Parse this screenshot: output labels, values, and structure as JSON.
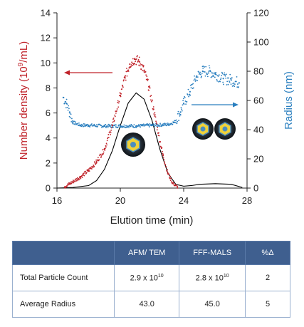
{
  "chart_data": {
    "type": "scatter",
    "xlabel": "Elution time (min)",
    "ylabel_left": "Number density (10",
    "ylabel_left_sup": "9",
    "ylabel_left_tail": "/mL)",
    "ylabel_right": "Radius (nm)",
    "x_ticks": [
      "16",
      "20",
      "24",
      "28"
    ],
    "y_left_ticks": [
      "0",
      "2",
      "4",
      "6",
      "8",
      "10",
      "12",
      "14"
    ],
    "y_right_ticks": [
      "0",
      "20",
      "40",
      "60",
      "80",
      "100",
      "120"
    ],
    "xlim": [
      16,
      28
    ],
    "ylim_left": [
      0,
      14
    ],
    "ylim_right": [
      0,
      120
    ],
    "colors": {
      "density": "#c0232a",
      "radius": "#2a7fbf",
      "fit": "#000000"
    },
    "series": [
      {
        "axis": "left",
        "style": "dots",
        "x": [
          16.5,
          17.0,
          17.5,
          18.0,
          18.5,
          19.0,
          19.5,
          20.0,
          20.3,
          20.6,
          20.9,
          21.2,
          21.5,
          21.8,
          22.1,
          22.4,
          22.7,
          23.0,
          23.3,
          23.6
        ],
        "y": [
          0.1,
          0.5,
          0.9,
          1.4,
          2.1,
          3.1,
          5.0,
          7.4,
          8.8,
          9.9,
          10.3,
          10.1,
          9.4,
          8.1,
          6.3,
          4.4,
          2.6,
          1.2,
          0.4,
          0.1
        ]
      },
      {
        "axis": "left",
        "style": "line",
        "x": [
          16.0,
          17.0,
          18.0,
          18.5,
          19.0,
          19.5,
          20.0,
          20.5,
          21.0,
          21.5,
          22.0,
          22.5,
          23.0,
          23.5,
          24.0,
          24.5,
          25.0,
          26.0,
          27.0,
          27.7
        ],
        "y": [
          0.0,
          0.05,
          0.2,
          0.6,
          1.5,
          3.0,
          5.0,
          6.8,
          7.6,
          7.1,
          5.4,
          3.1,
          1.2,
          0.3,
          0.15,
          0.2,
          0.3,
          0.35,
          0.3,
          0.05
        ]
      },
      {
        "axis": "right",
        "style": "dots",
        "x": [
          16.4,
          16.6,
          16.8,
          17.0,
          17.5,
          18.0,
          19.0,
          20.0,
          21.0,
          22.0,
          23.0,
          23.4,
          23.8,
          24.0,
          24.4,
          24.8,
          25.2,
          25.6,
          26.0,
          26.5,
          27.0,
          27.5
        ],
        "y": [
          62,
          58,
          52,
          45,
          43,
          43,
          42.5,
          42.5,
          42.5,
          43,
          43.5,
          45,
          52,
          58,
          66,
          76,
          80,
          80,
          78,
          75,
          74,
          72
        ]
      }
    ]
  },
  "table": {
    "headers": [
      "",
      "AFM/ TEM",
      "FFF-MALS",
      "%Δ"
    ],
    "rows": [
      {
        "label": "Total Particle Count",
        "afm_base": "2.9 x 10",
        "afm_exp": "10",
        "fff_base": "2.8 x 10",
        "fff_exp": "10",
        "pct": "2"
      },
      {
        "label": "Average Radius",
        "afm": "43.0",
        "fff": "45.0",
        "pct": "5"
      }
    ]
  }
}
